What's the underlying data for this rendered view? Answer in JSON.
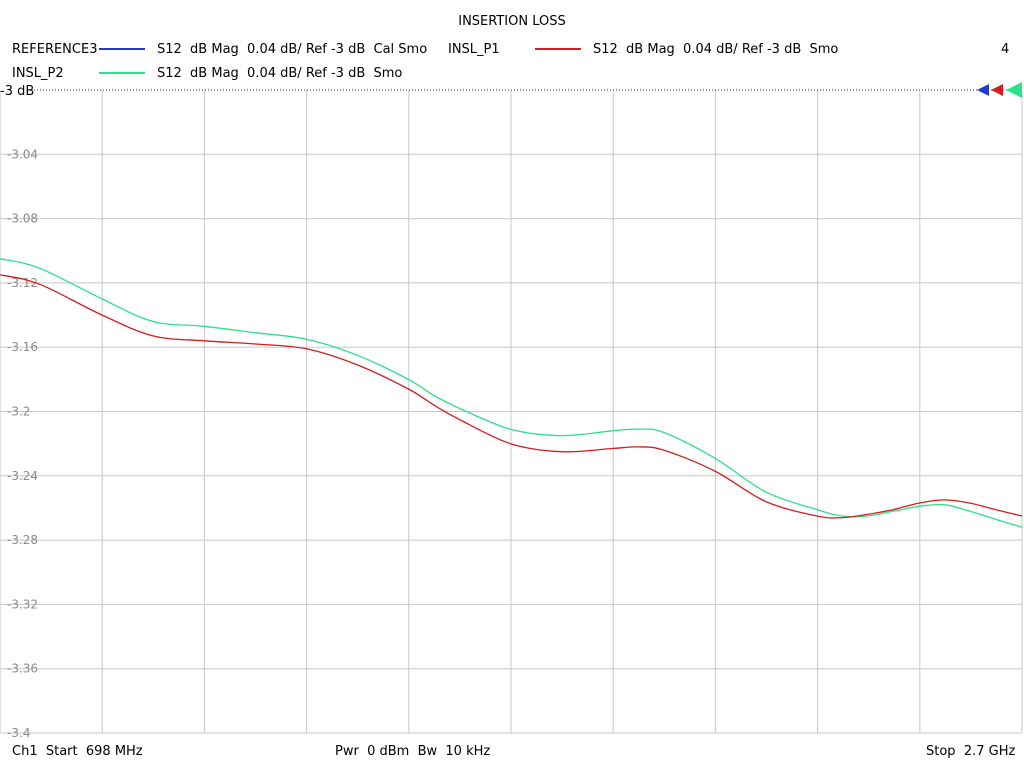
{
  "header": {
    "title": "INSERTION LOSS",
    "channel_number": "4"
  },
  "legend": [
    {
      "name": "REFERENCE3",
      "desc": "S12  dB Mag  0.04 dB/ Ref -3 dB  Cal Smo",
      "color": "#1e3cc8"
    },
    {
      "name": "INSL_P1",
      "desc": "S12  dB Mag  0.04 dB/ Ref -3 dB  Smo",
      "color": "#d21e1e"
    },
    {
      "name": "INSL_P2",
      "desc": "S12  dB Mag  0.04 dB/ Ref -3 dB  Smo",
      "color": "#2ee08a"
    }
  ],
  "footer": {
    "start": "Ch1  Start  698 MHz",
    "power": "Pwr  0 dBm  Bw  10 kHz",
    "stop": "Stop  2.7 GHz"
  },
  "chart_data": {
    "type": "line",
    "title": "INSERTION LOSS",
    "xlabel": "",
    "ylabel": "",
    "xlim": [
      698,
      2700
    ],
    "ylim": [
      -3.4,
      -3.0
    ],
    "x_unit": "MHz",
    "reference_label": "-3 dB",
    "y_ticks": [
      -3,
      -3.04,
      -3.08,
      -3.12,
      -3.16,
      -3.2,
      -3.24,
      -3.28,
      -3.32,
      -3.36,
      -3.4
    ],
    "y_tick_labels": [
      "",
      "-3.04",
      "-3.08",
      "-3.12",
      "-3.16",
      "-3.2",
      "-3.24",
      "-3.28",
      "-3.32",
      "-3.36",
      "-3.4"
    ],
    "x_divisions": 10,
    "grid": true,
    "series": [
      {
        "name": "INSL_P1",
        "color": "#d21e1e",
        "x": [
          698,
          748,
          798,
          898,
          998,
          1098,
          1198,
          1298,
          1398,
          1498,
          1548,
          1598,
          1698,
          1798,
          1898,
          1948,
          1998,
          2098,
          2198,
          2298,
          2348,
          2398,
          2448,
          2498,
          2548,
          2598,
          2648,
          2700
        ],
        "y": [
          -3.115,
          -3.118,
          -3.124,
          -3.14,
          -3.153,
          -3.156,
          -3.158,
          -3.161,
          -3.171,
          -3.186,
          -3.196,
          -3.205,
          -3.22,
          -3.225,
          -3.223,
          -3.222,
          -3.224,
          -3.237,
          -3.256,
          -3.265,
          -3.266,
          -3.264,
          -3.261,
          -3.257,
          -3.255,
          -3.257,
          -3.261,
          -3.265
        ]
      },
      {
        "name": "INSL_P2",
        "color": "#2ee08a",
        "x": [
          698,
          748,
          798,
          898,
          998,
          1098,
          1198,
          1298,
          1398,
          1498,
          1548,
          1598,
          1698,
          1798,
          1898,
          1948,
          1998,
          2098,
          2198,
          2298,
          2348,
          2398,
          2448,
          2498,
          2548,
          2598,
          2648,
          2700
        ],
        "y": [
          -3.105,
          -3.108,
          -3.114,
          -3.13,
          -3.144,
          -3.147,
          -3.151,
          -3.155,
          -3.165,
          -3.18,
          -3.19,
          -3.198,
          -3.211,
          -3.215,
          -3.212,
          -3.211,
          -3.213,
          -3.229,
          -3.25,
          -3.261,
          -3.265,
          -3.265,
          -3.262,
          -3.259,
          -3.258,
          -3.262,
          -3.267,
          -3.272
        ]
      }
    ]
  }
}
